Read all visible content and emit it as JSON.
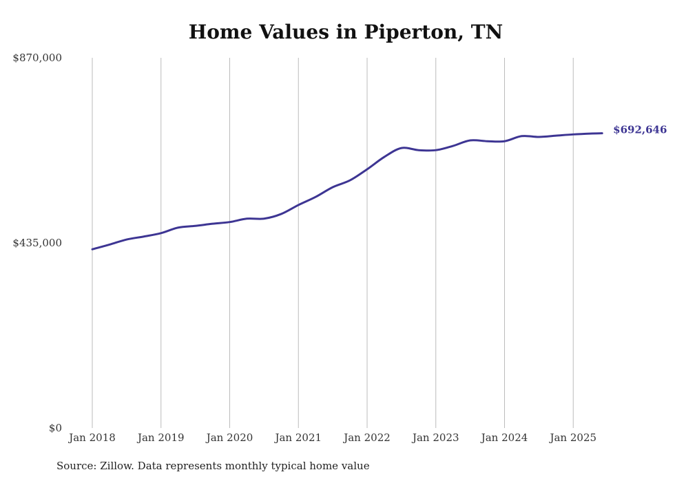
{
  "chart_data": {
    "type": "line",
    "title": "Home Values in Piperton, TN",
    "source": "Source: Zillow. Data represents monthly typical home value",
    "xlabel": "",
    "ylabel": "",
    "ylim": [
      0,
      870000
    ],
    "yticks": [
      {
        "value": 0,
        "label": "$0"
      },
      {
        "value": 435000,
        "label": "$435,000"
      },
      {
        "value": 870000,
        "label": "$870,000"
      }
    ],
    "xticks": [
      {
        "value": 2018.0,
        "label": "Jan 2018"
      },
      {
        "value": 2019.0,
        "label": "Jan 2019"
      },
      {
        "value": 2020.0,
        "label": "Jan 2020"
      },
      {
        "value": 2021.0,
        "label": "Jan 2021"
      },
      {
        "value": 2022.0,
        "label": "Jan 2022"
      },
      {
        "value": 2023.0,
        "label": "Jan 2023"
      },
      {
        "value": 2024.0,
        "label": "Jan 2024"
      },
      {
        "value": 2025.0,
        "label": "Jan 2025"
      }
    ],
    "grid": "vertical",
    "line_color": "#3d3593",
    "end_label": "$692,646",
    "series": [
      {
        "name": "Typical home value",
        "x": [
          2018.0,
          2018.25,
          2018.5,
          2018.75,
          2019.0,
          2019.25,
          2019.5,
          2019.75,
          2020.0,
          2020.25,
          2020.5,
          2020.75,
          2021.0,
          2021.25,
          2021.5,
          2021.75,
          2022.0,
          2022.25,
          2022.5,
          2022.75,
          2023.0,
          2023.25,
          2023.5,
          2023.75,
          2024.0,
          2024.25,
          2024.5,
          2024.75,
          2025.0,
          2025.25,
          2025.42
        ],
        "values": [
          420000,
          431000,
          443000,
          450000,
          458000,
          471000,
          475000,
          480000,
          484000,
          492000,
          492000,
          503000,
          524000,
          543000,
          566000,
          582000,
          608000,
          637000,
          658000,
          653000,
          653000,
          663000,
          676000,
          674000,
          674000,
          686000,
          684000,
          687000,
          690000,
          692000,
          692646
        ]
      }
    ]
  }
}
